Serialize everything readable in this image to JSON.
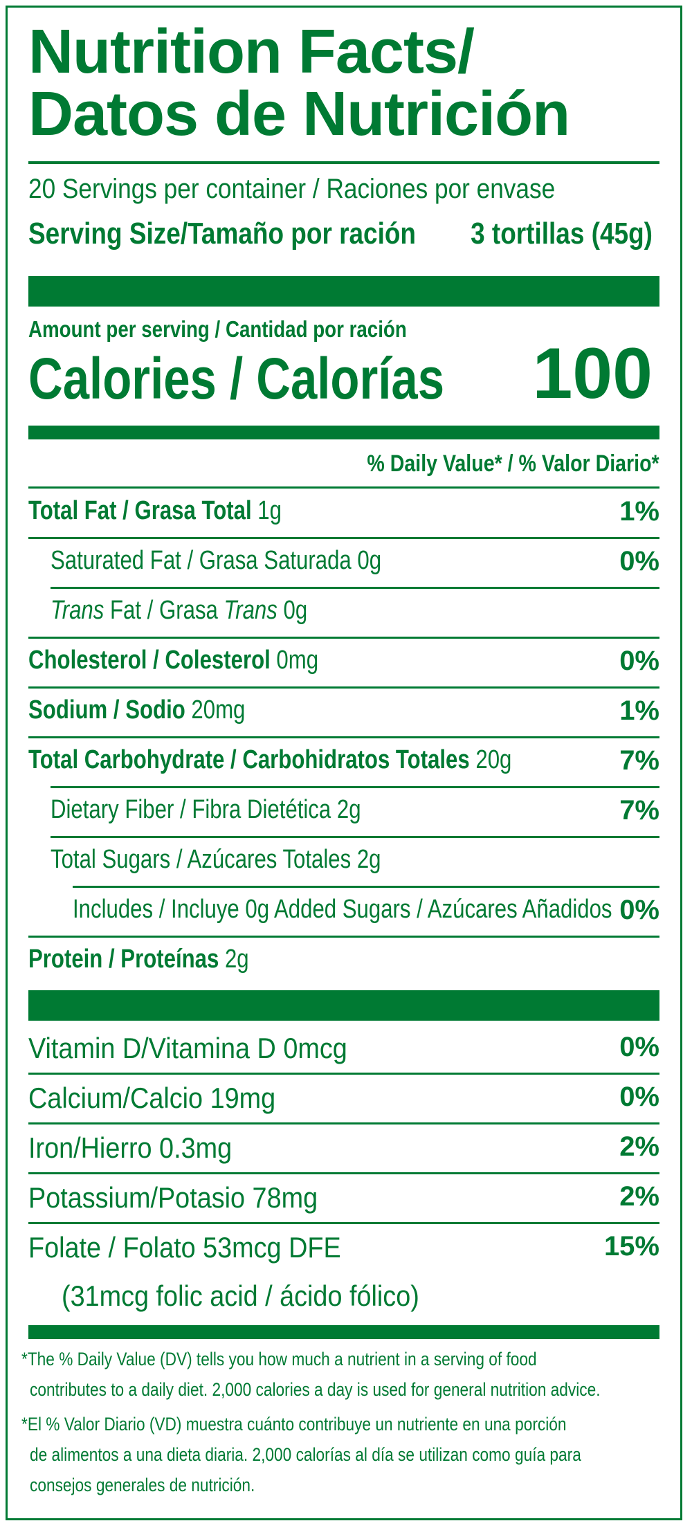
{
  "header": {
    "title_line1": "Nutrition Facts/",
    "title_line2": "Datos de Nutrición"
  },
  "servings": {
    "per_container": "20 Servings per container / Raciones por envase",
    "size_label": "Serving Size/Tamaño por ración",
    "size_value": "3 tortillas (45g)"
  },
  "calories": {
    "amount_label": "Amount per serving / Cantidad por ración",
    "label": "Calories / Calorías",
    "value": "100"
  },
  "daily_value_header": "% Daily Value* / % Valor Diario*",
  "nutrients": [
    {
      "label": "Total Fat / Grasa Total",
      "amount": "1g",
      "pct": "1%"
    },
    {
      "label": "Saturated Fat / Grasa Saturada",
      "amount": "0g",
      "pct": "0%"
    },
    {
      "label_pre": "Trans",
      "label_mid": " Fat / Grasa ",
      "label_it2": "Trans",
      "amount": "0g",
      "pct": ""
    },
    {
      "label": "Cholesterol / Colesterol",
      "amount": "0mg",
      "pct": "0%"
    },
    {
      "label": "Sodium / Sodio",
      "amount": "20mg",
      "pct": "1%"
    },
    {
      "label": "Total Carbohydrate / Carbohidratos Totales",
      "amount": "20g",
      "pct": "7%"
    },
    {
      "label": "Dietary Fiber / Fibra Dietética",
      "amount": "2g",
      "pct": "7%"
    },
    {
      "label": "Total Sugars / Azúcares Totales",
      "amount": "2g",
      "pct": ""
    },
    {
      "label": "Includes / Incluye 0g Added Sugars / Azúcares Añadidos",
      "amount": "",
      "pct": "0%"
    },
    {
      "label": "Protein / Proteínas",
      "amount": "2g",
      "pct": ""
    }
  ],
  "vitamins": [
    {
      "label": "Vitamin D/Vitamina D 0mcg",
      "pct": "0%"
    },
    {
      "label": "Calcium/Calcio 19mg",
      "pct": "0%"
    },
    {
      "label": "Iron/Hierro 0.3mg",
      "pct": "2%"
    },
    {
      "label": "Potassium/Potasio 78mg",
      "pct": "2%"
    },
    {
      "label": "Folate / Folato 53mcg DFE",
      "pct": "15%"
    },
    {
      "label": "(31mcg folic acid / ácido fólico)",
      "pct": ""
    }
  ],
  "footnotes": {
    "en_line1": "*The % Daily Value (DV) tells you how much a nutrient in a serving of food",
    "en_line2": "contributes to a daily diet. 2,000 calories a day is used for general nutrition advice.",
    "es_line1": "*El % Valor Diario (VD) muestra cuánto contribuye un nutriente en una porción",
    "es_line2": "de alimentos a una dieta diaria. 2,000 calorías al día se utilizan como guía para",
    "es_line3": "consejos generales de nutrición."
  },
  "colors": {
    "brand_green": "#007a33"
  }
}
